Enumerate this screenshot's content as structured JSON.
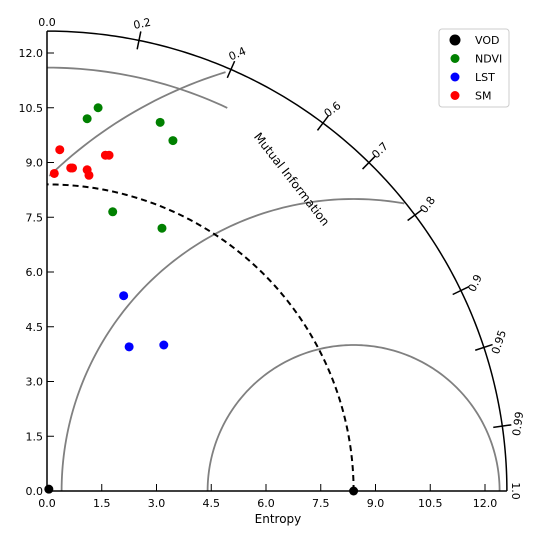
{
  "chart_data": {
    "type": "scatter",
    "subtype": "taylor-diagram",
    "xlabel": "Entropy",
    "arc_label": "Mutual Information",
    "radial_range": [
      0,
      12.6
    ],
    "x_ticks": [
      "0.0",
      "1.5",
      "3.0",
      "4.5",
      "6.0",
      "7.5",
      "9.0",
      "10.5",
      "12.0"
    ],
    "y_ticks": [
      "0.0",
      "1.5",
      "3.0",
      "4.5",
      "6.0",
      "7.5",
      "9.0",
      "10.5",
      "12.0"
    ],
    "angular_ticks": [
      {
        "value": 0.0,
        "label": "0.0"
      },
      {
        "value": 0.2,
        "label": "0.2"
      },
      {
        "value": 0.4,
        "label": "0.4"
      },
      {
        "value": 0.6,
        "label": "0.6"
      },
      {
        "value": 0.7,
        "label": "0.7"
      },
      {
        "value": 0.8,
        "label": "0.8"
      },
      {
        "value": 0.9,
        "label": "0.9"
      },
      {
        "value": 0.95,
        "label": "0.95"
      },
      {
        "value": 0.99,
        "label": "0.99"
      },
      {
        "value": 1.0,
        "label": "1.0"
      }
    ],
    "reference": {
      "name": "VOD",
      "entropy": 8.4,
      "color": "#000000"
    },
    "reference_arc_radius": 8.4,
    "distance_arcs": [
      4.0,
      8.0,
      12.0
    ],
    "inner_arc_radius": 11.6,
    "legend": {
      "position": "top-right"
    },
    "grid": false,
    "series": [
      {
        "name": "VOD",
        "color": "#000000",
        "points": [
          [
            0.05,
            0.05
          ],
          [
            8.4,
            0.0
          ]
        ]
      },
      {
        "name": "NDVI",
        "color": "#008000",
        "points": [
          [
            1.4,
            10.5
          ],
          [
            1.1,
            10.2
          ],
          [
            3.1,
            10.1
          ],
          [
            3.45,
            9.6
          ],
          [
            1.8,
            7.65
          ],
          [
            3.15,
            7.2
          ]
        ]
      },
      {
        "name": "LST",
        "color": "#0000ff",
        "points": [
          [
            2.1,
            5.35
          ],
          [
            2.25,
            3.95
          ],
          [
            3.2,
            4.0
          ]
        ]
      },
      {
        "name": "SM",
        "color": "#ff0000",
        "points": [
          [
            0.35,
            9.35
          ],
          [
            0.2,
            8.7
          ],
          [
            0.65,
            8.85
          ],
          [
            0.7,
            8.85
          ],
          [
            1.1,
            8.8
          ],
          [
            1.15,
            8.65
          ],
          [
            1.6,
            9.2
          ],
          [
            1.7,
            9.2
          ]
        ]
      }
    ]
  }
}
